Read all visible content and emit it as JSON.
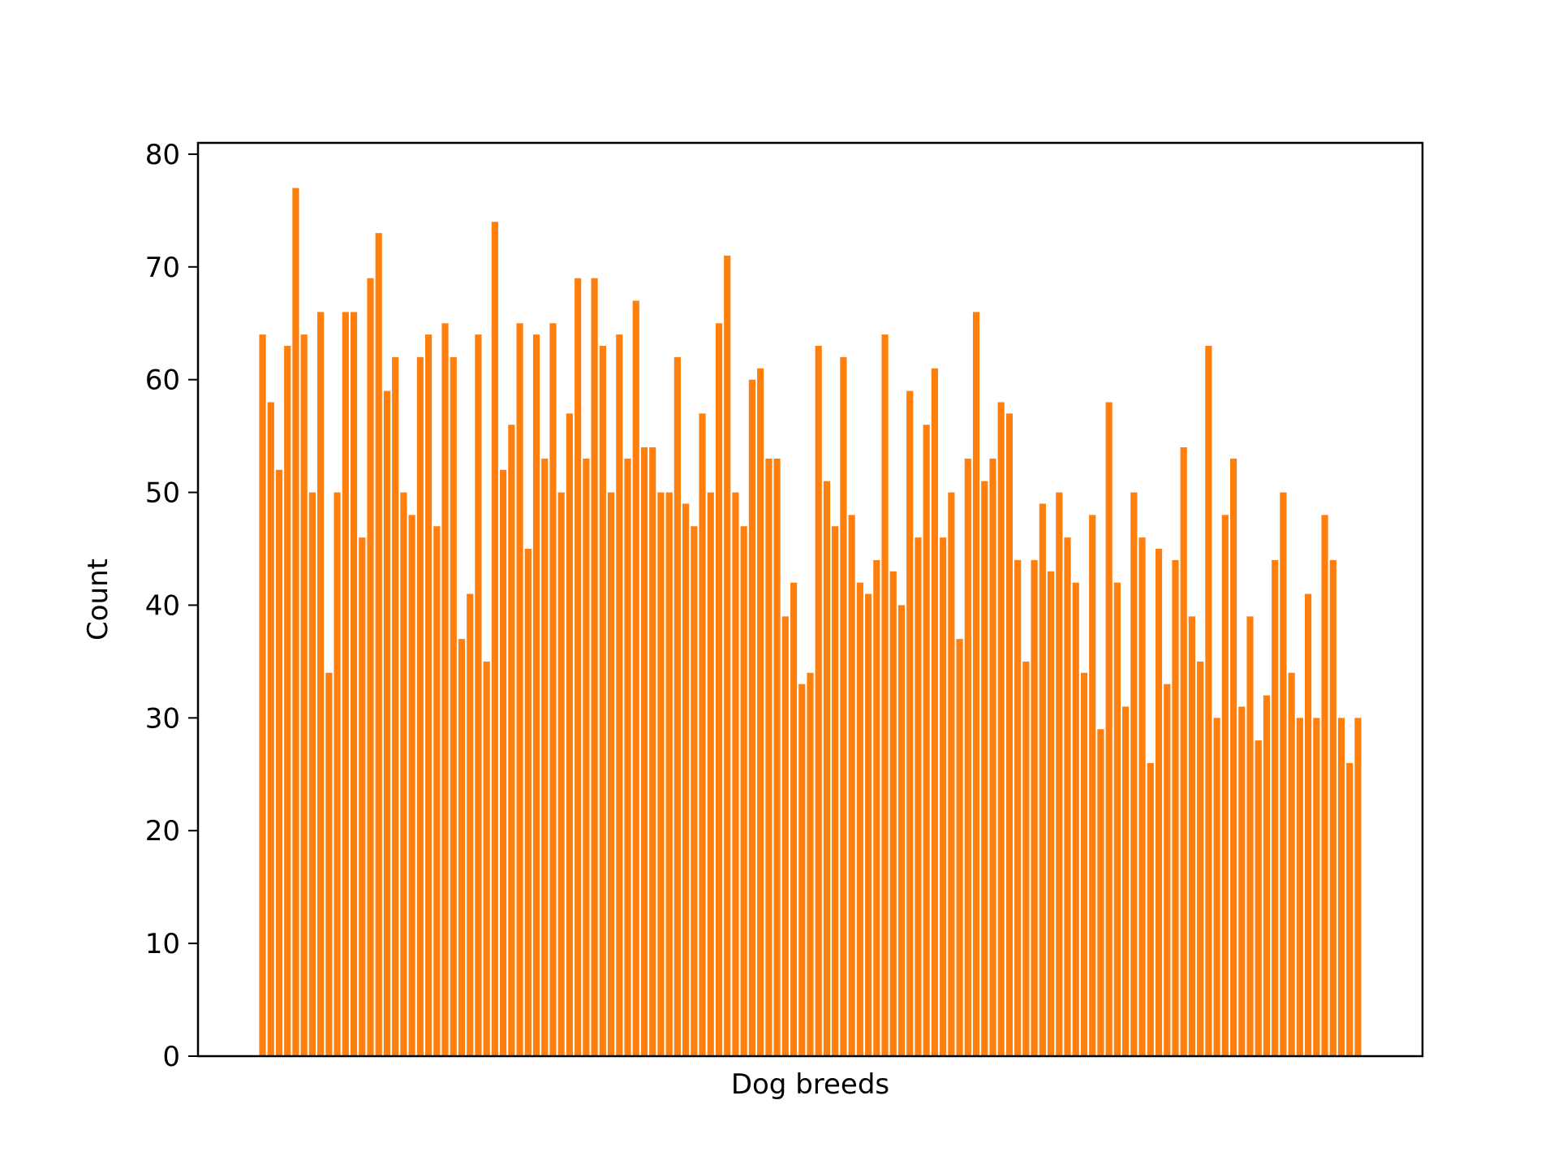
{
  "chart_data": {
    "type": "bar",
    "title": "",
    "xlabel": "Dog breeds",
    "ylabel": "Count",
    "ylim": [
      0,
      81
    ],
    "yticks": [
      0,
      10,
      20,
      30,
      40,
      50,
      60,
      70,
      80
    ],
    "x_tick_labels": "none",
    "grid": false,
    "legend": "none",
    "bar_color": "#ff7f0e",
    "frame_color": "#000000",
    "values": [
      64,
      58,
      52,
      63,
      77,
      64,
      50,
      66,
      34,
      50,
      66,
      66,
      46,
      69,
      73,
      59,
      62,
      50,
      48,
      62,
      64,
      47,
      65,
      62,
      37,
      41,
      64,
      35,
      74,
      52,
      56,
      65,
      45,
      64,
      53,
      65,
      50,
      57,
      69,
      53,
      69,
      63,
      50,
      64,
      53,
      67,
      54,
      54,
      50,
      50,
      62,
      49,
      47,
      57,
      50,
      65,
      71,
      50,
      47,
      60,
      61,
      53,
      53,
      39,
      42,
      33,
      34,
      63,
      51,
      47,
      62,
      48,
      42,
      41,
      44,
      64,
      43,
      40,
      59,
      46,
      56,
      61,
      46,
      50,
      37,
      53,
      66,
      51,
      53,
      58,
      57,
      44,
      35,
      44,
      49,
      43,
      50,
      46,
      42,
      34,
      48,
      29,
      58,
      42,
      31,
      50,
      46,
      26,
      45,
      33,
      44,
      54,
      39,
      35,
      63,
      30,
      48,
      53,
      31,
      39,
      28,
      32,
      44,
      50,
      34,
      30,
      41,
      30,
      48,
      44,
      30,
      26,
      30
    ]
  }
}
